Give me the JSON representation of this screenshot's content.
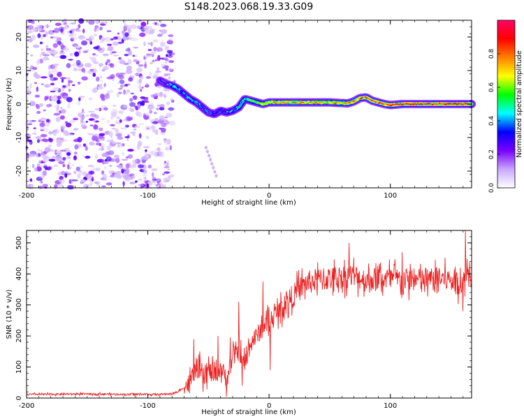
{
  "title": "S148.2023.068.19.33.G09",
  "chart_data": [
    {
      "type": "heatmap",
      "xlabel": "Height of straight line (km)",
      "ylabel": "Frequency (Hz)",
      "xlim": [
        -200,
        167
      ],
      "ylim": [
        -25,
        25
      ],
      "xticks": [
        -200,
        -100,
        0,
        100
      ],
      "xtick_labels": [
        "-200",
        "-100",
        "0",
        "100"
      ],
      "yticks": [
        -20,
        -10,
        0,
        10,
        20
      ],
      "ytick_labels": [
        "-20",
        "-10",
        "0",
        "10",
        "20"
      ],
      "colorbar": {
        "label": "Normalized spectral amplitude",
        "range": [
          0,
          1
        ],
        "ticks": [
          0.0,
          0.2,
          0.4,
          0.6,
          0.8
        ],
        "tick_labels": [
          "0.0",
          "0.2",
          "0.4",
          "0.6",
          "0.8"
        ],
        "colors": [
          "#ffffff",
          "#c8a8ff",
          "#7a00ff",
          "#0000ff",
          "#00ffff",
          "#00ff00",
          "#ffff00",
          "#ff8000",
          "#ff0000",
          "#ff0066"
        ]
      },
      "noise_region": {
        "x_range": [
          -200,
          -80
        ],
        "y_range": [
          -25,
          25
        ]
      },
      "ridge": {
        "x": [
          -90,
          -85,
          -80,
          -75,
          -70,
          -65,
          -60,
          -55,
          -50,
          -45,
          -40,
          -35,
          -30,
          -25,
          -20,
          -15,
          -10,
          -5,
          0,
          10,
          20,
          30,
          40,
          50,
          60,
          65,
          70,
          75,
          80,
          85,
          90,
          95,
          100,
          110,
          120,
          130,
          140,
          150,
          160,
          167
        ],
        "y": [
          7,
          6,
          5.5,
          4.5,
          3,
          1.5,
          0.5,
          -1,
          -2.5,
          -3,
          -2,
          -2.5,
          -2,
          -1,
          1.5,
          1,
          0.5,
          0,
          0.5,
          0.5,
          0.5,
          0.5,
          0.5,
          0.5,
          0.3,
          0.2,
          0.8,
          1.8,
          2,
          1,
          0.5,
          0,
          -0.3,
          0,
          0,
          0,
          0,
          0,
          0,
          0
        ],
        "amplitude": [
          0.3,
          0.35,
          0.4,
          0.45,
          0.4,
          0.45,
          0.4,
          0.35,
          0.35,
          0.3,
          0.3,
          0.35,
          0.4,
          0.45,
          0.5,
          0.55,
          0.6,
          0.65,
          0.7,
          0.7,
          0.7,
          0.7,
          0.7,
          0.7,
          0.7,
          0.72,
          0.75,
          0.8,
          0.85,
          0.85,
          0.85,
          0.85,
          0.9,
          0.9,
          0.9,
          0.9,
          0.9,
          0.9,
          0.9,
          0.9
        ]
      }
    },
    {
      "type": "line",
      "xlabel": "Height of straight line (km)",
      "ylabel": "SNR (10 * v/v)",
      "xlim": [
        -200,
        167
      ],
      "ylim": [
        0,
        540
      ],
      "xticks": [
        -200,
        -100,
        0,
        100
      ],
      "xtick_labels": [
        "-200",
        "-100",
        "0",
        "100"
      ],
      "yticks": [
        0,
        100,
        200,
        300,
        400,
        500
      ],
      "ytick_labels": [
        "0",
        "100",
        "200",
        "300",
        "400",
        "500"
      ],
      "line_color": "#ee2020",
      "series": [
        {
          "name": "SNR",
          "x": [
            -200,
            -180,
            -160,
            -140,
            -120,
            -100,
            -90,
            -80,
            -75,
            -70,
            -65,
            -62,
            -60,
            -55,
            -50,
            -45,
            -40,
            -35,
            -30,
            -25,
            -20,
            -15,
            -10,
            -5,
            0,
            5,
            10,
            15,
            20,
            25,
            30,
            40,
            50,
            60,
            70,
            80,
            90,
            100,
            110,
            120,
            130,
            140,
            150,
            160,
            165,
            167
          ],
          "y": [
            12,
            12,
            13,
            13,
            12,
            12,
            12,
            14,
            20,
            35,
            50,
            80,
            100,
            60,
            90,
            70,
            100,
            60,
            130,
            150,
            110,
            180,
            200,
            230,
            250,
            270,
            290,
            310,
            330,
            350,
            370,
            380,
            385,
            390,
            395,
            380,
            385,
            385,
            380,
            380,
            380,
            385,
            380,
            370,
            420,
            390
          ],
          "spikes": [
            {
              "x": -62,
              "y": 190
            },
            {
              "x": -57,
              "y": 150
            },
            {
              "x": -42,
              "y": 200
            },
            {
              "x": -32,
              "y": 195
            },
            {
              "x": -25,
              "y": 310
            },
            {
              "x": -22,
              "y": 40
            },
            {
              "x": -5,
              "y": 375
            },
            {
              "x": 1,
              "y": 90
            },
            {
              "x": 66,
              "y": 500
            },
            {
              "x": 110,
              "y": 470
            },
            {
              "x": 158,
              "y": 420
            },
            {
              "x": 160,
              "y": 280
            },
            {
              "x": 162,
              "y": 540
            }
          ]
        }
      ]
    }
  ]
}
